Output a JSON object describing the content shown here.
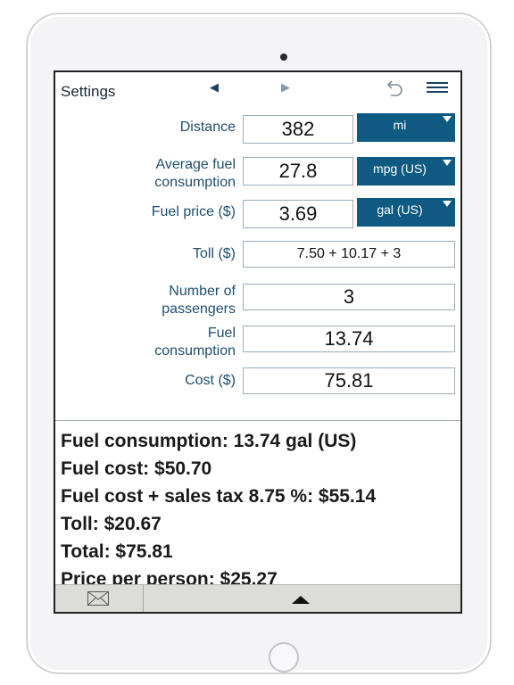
{
  "toolbar": {
    "settings_label": "Settings",
    "prev_icon": "◀",
    "next_icon": "▶",
    "undo_icon": "undo-icon",
    "menu_icon": "menu-icon"
  },
  "form": {
    "distance": {
      "label": "Distance",
      "value": "382",
      "unit": "mi"
    },
    "avg_consumption": {
      "label_line1": "Average fuel",
      "label_line2": "consumption",
      "value": "27.8",
      "unit": "mpg (US)"
    },
    "fuel_price": {
      "label": "Fuel price ($)",
      "value": "3.69",
      "unit": "gal (US)"
    },
    "toll": {
      "label": "Toll ($)",
      "value": "7.50 + 10.17 + 3"
    },
    "passengers": {
      "label_line1": "Number of",
      "label_line2": "passengers",
      "value": "3"
    },
    "fuel_consumption": {
      "label_line1": "Fuel",
      "label_line2": "consumption",
      "value": "13.74"
    },
    "cost": {
      "label": "Cost ($)",
      "value": "75.81"
    }
  },
  "results": {
    "fuel_consumption": "Fuel consumption: 13.74 gal (US)",
    "fuel_cost": "Fuel cost: $50.70",
    "fuel_cost_tax": "Fuel cost + sales tax 8.75 %: $55.14",
    "toll": "Toll: $20.67",
    "total": "Total: $75.81",
    "price_per_person": "Price per person: $25.27"
  },
  "colors": {
    "accent": "#0f5a82",
    "label": "#1f4e6f",
    "bottom_bar": "#dcdcd8"
  }
}
